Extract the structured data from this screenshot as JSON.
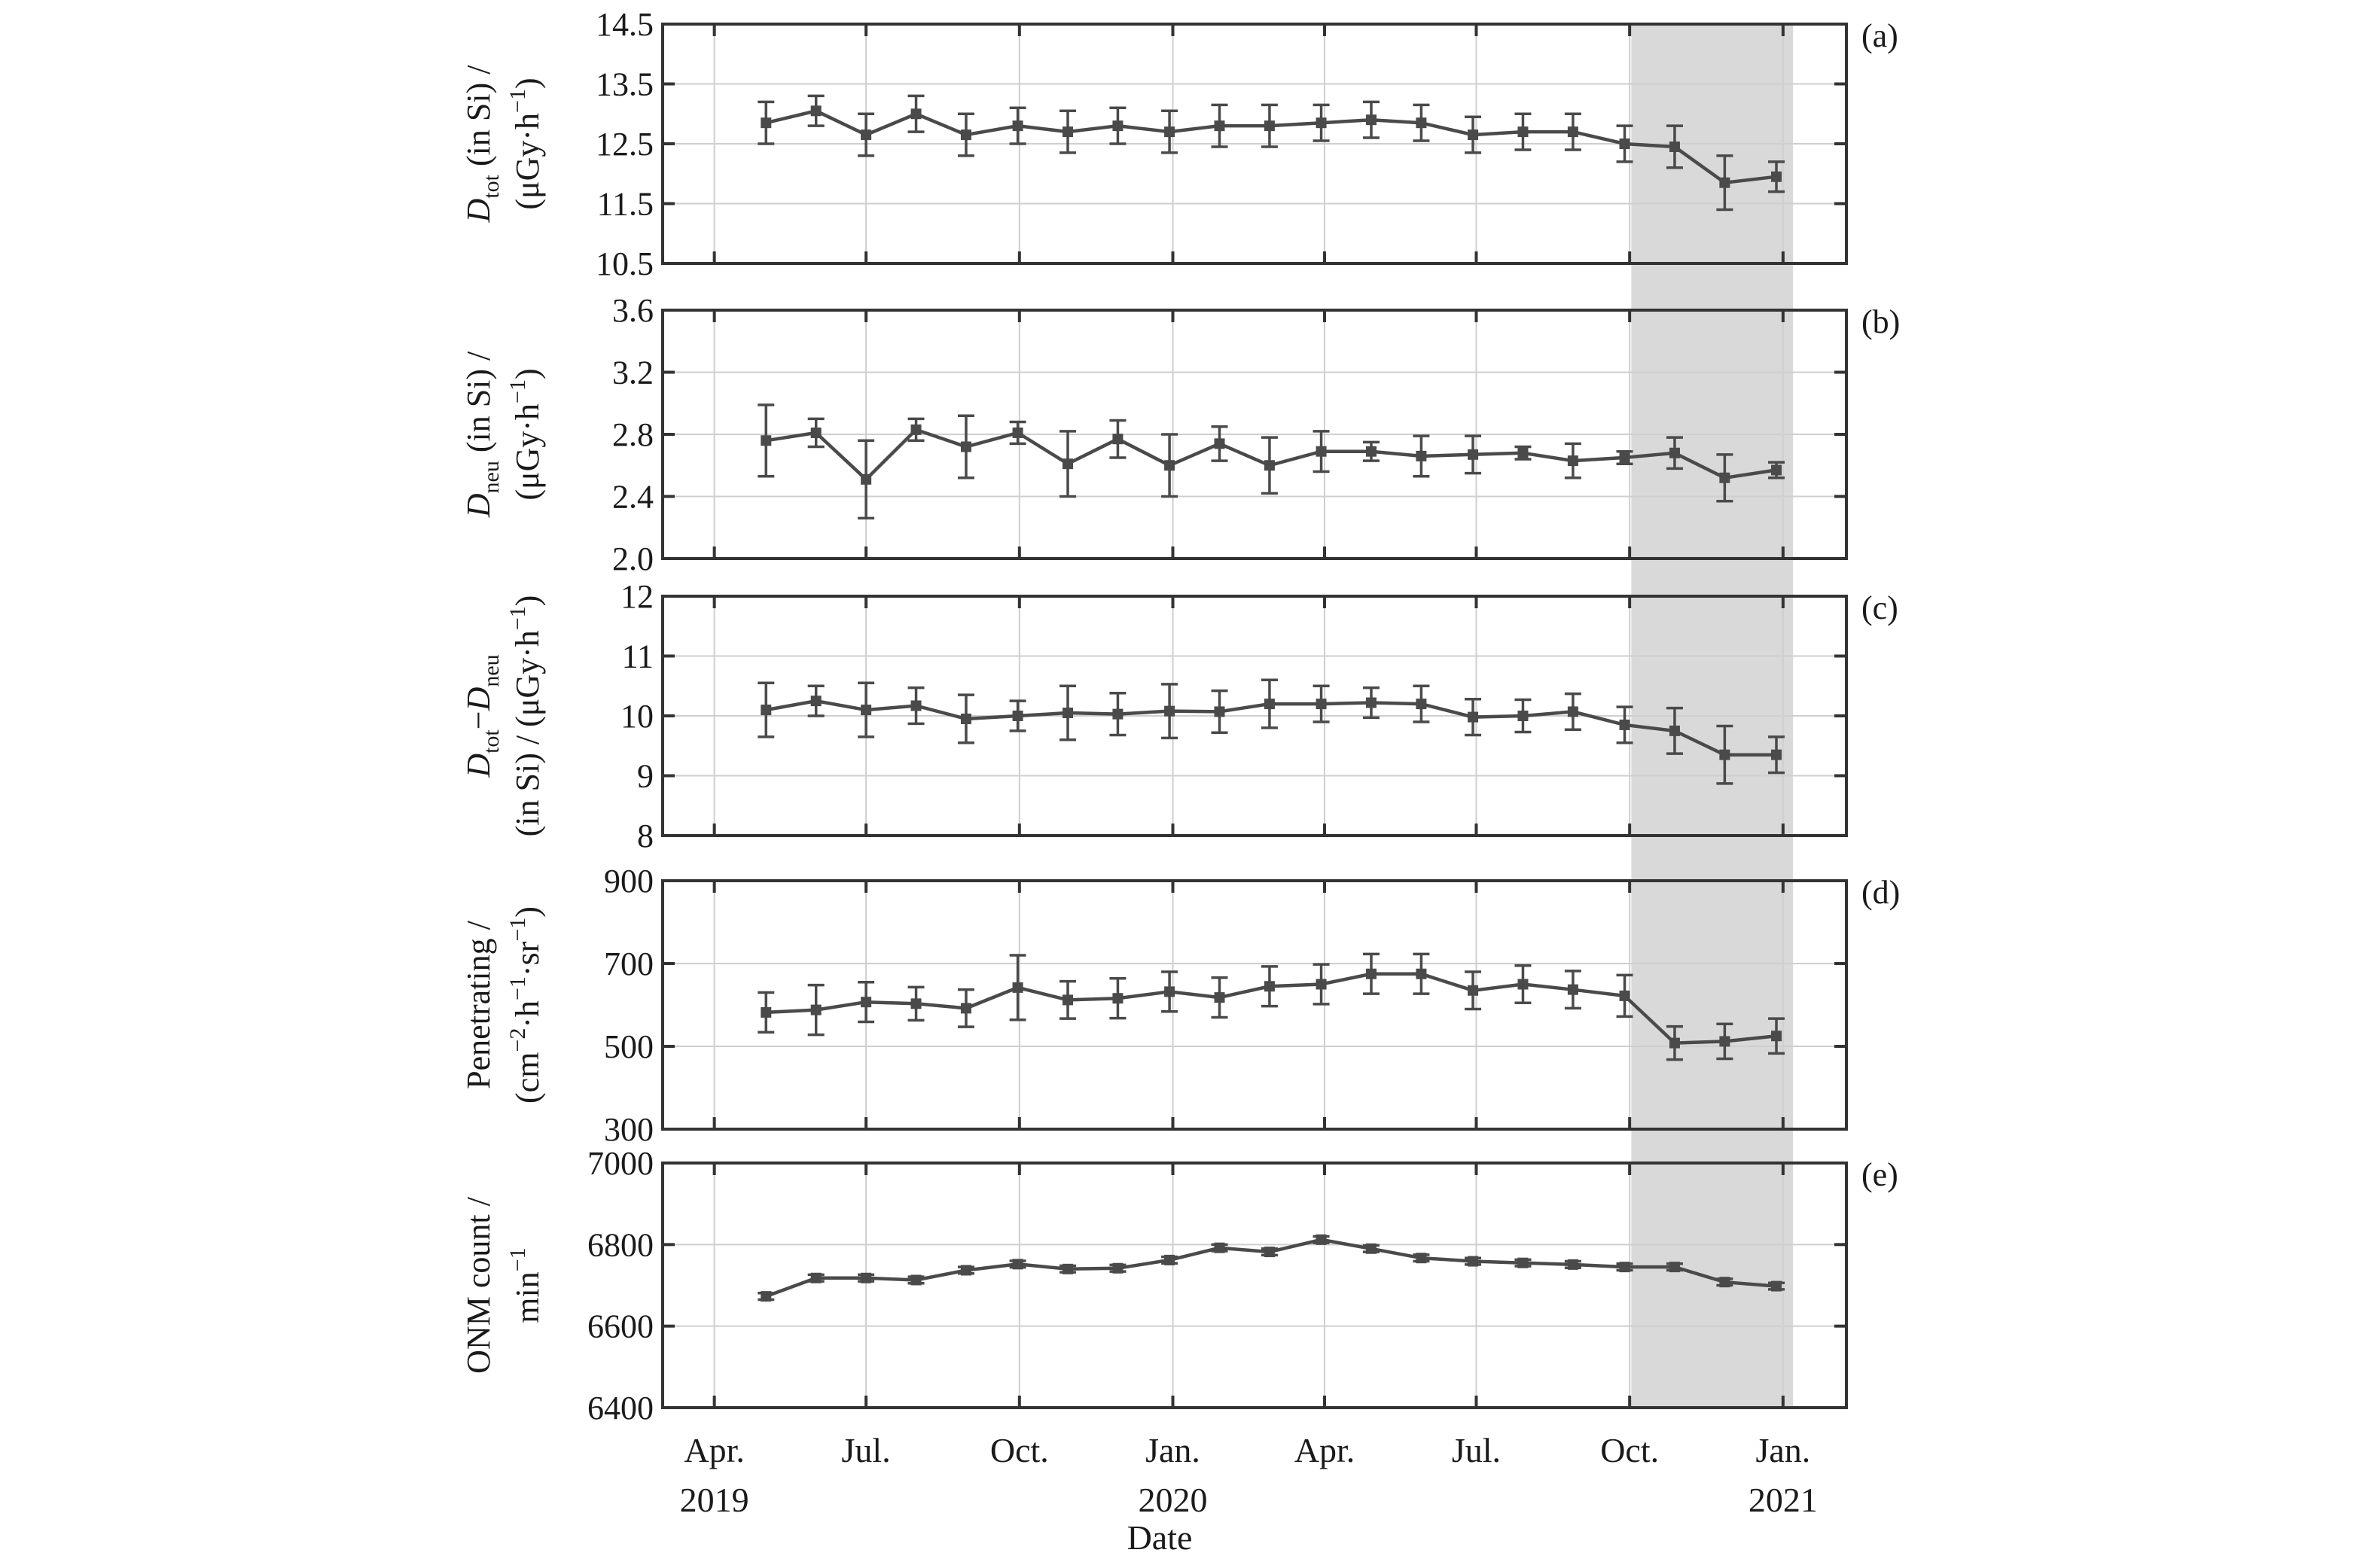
{
  "chart_data": {
    "type": "line",
    "xlabel": "Date",
    "x_ticks": [
      {
        "date": "2019-04-01",
        "line1": "Apr.",
        "line2": "2019"
      },
      {
        "date": "2019-07-01",
        "line1": "Jul.",
        "line2": ""
      },
      {
        "date": "2019-10-01",
        "line1": "Oct.",
        "line2": ""
      },
      {
        "date": "2020-01-01",
        "line1": "Jan.",
        "line2": "2020"
      },
      {
        "date": "2020-04-01",
        "line1": "Apr.",
        "line2": ""
      },
      {
        "date": "2020-07-01",
        "line1": "Jul.",
        "line2": ""
      },
      {
        "date": "2020-10-01",
        "line1": "Oct.",
        "line2": ""
      },
      {
        "date": "2021-01-01",
        "line1": "Jan.",
        "line2": "2021"
      }
    ],
    "xlim": [
      "2019-03-01",
      "2021-02-08"
    ],
    "x": [
      "2019-05-02",
      "2019-06-01",
      "2019-07-01",
      "2019-07-31",
      "2019-08-30",
      "2019-09-30",
      "2019-10-30",
      "2019-11-29",
      "2019-12-30",
      "2020-01-29",
      "2020-02-28",
      "2020-03-30",
      "2020-04-29",
      "2020-05-29",
      "2020-06-29",
      "2020-07-29",
      "2020-08-28",
      "2020-09-28",
      "2020-10-28",
      "2020-11-27",
      "2020-12-28"
    ],
    "highlight_range": [
      "2020-10-02",
      "2021-01-07"
    ],
    "panels": [
      {
        "label": "(a)",
        "ylabel_lines": [
          {
            "parts": [
              {
                "t": "D",
                "s": "italic"
              },
              {
                "t": "tot",
                "s": "sub"
              },
              {
                "t": " (in Si) /"
              }
            ]
          },
          {
            "parts": [
              {
                "t": "(μGy·h"
              },
              {
                "t": "−1",
                "s": "sup"
              },
              {
                "t": ")"
              }
            ]
          }
        ],
        "ylim": [
          10.5,
          14.5
        ],
        "yticks": [
          "10.5",
          "11.5",
          "12.5",
          "13.5",
          "14.5"
        ],
        "values": [
          12.85,
          13.05,
          12.65,
          13.0,
          12.65,
          12.8,
          12.7,
          12.8,
          12.7,
          12.8,
          12.8,
          12.85,
          12.9,
          12.85,
          12.65,
          12.7,
          12.7,
          12.5,
          12.45,
          11.85,
          11.95
        ],
        "errors": [
          0.35,
          0.25,
          0.35,
          0.3,
          0.35,
          0.3,
          0.35,
          0.3,
          0.35,
          0.35,
          0.35,
          0.3,
          0.3,
          0.3,
          0.3,
          0.3,
          0.3,
          0.3,
          0.35,
          0.45,
          0.25
        ]
      },
      {
        "label": "(b)",
        "ylabel_lines": [
          {
            "parts": [
              {
                "t": "D",
                "s": "italic"
              },
              {
                "t": "neu",
                "s": "sub"
              },
              {
                "t": " (in Si) /"
              }
            ]
          },
          {
            "parts": [
              {
                "t": "(μGy·h"
              },
              {
                "t": "−1",
                "s": "sup"
              },
              {
                "t": ")"
              }
            ]
          }
        ],
        "ylim": [
          2.0,
          3.6
        ],
        "yticks": [
          "2.0",
          "2.4",
          "2.8",
          "3.2",
          "3.6"
        ],
        "values": [
          2.76,
          2.81,
          2.51,
          2.83,
          2.72,
          2.81,
          2.61,
          2.77,
          2.6,
          2.74,
          2.6,
          2.69,
          2.69,
          2.66,
          2.67,
          2.68,
          2.63,
          2.65,
          2.68,
          2.52,
          2.57
        ],
        "errors": [
          0.23,
          0.09,
          0.25,
          0.07,
          0.2,
          0.07,
          0.21,
          0.12,
          0.2,
          0.11,
          0.18,
          0.13,
          0.06,
          0.13,
          0.12,
          0.04,
          0.11,
          0.04,
          0.1,
          0.15,
          0.05
        ]
      },
      {
        "label": "(c)",
        "ylabel_lines": [
          {
            "parts": [
              {
                "t": "D",
                "s": "italic"
              },
              {
                "t": "tot",
                "s": "sub"
              },
              {
                "t": "−"
              },
              {
                "t": "D",
                "s": "italic"
              },
              {
                "t": "neu",
                "s": "sub"
              }
            ]
          },
          {
            "parts": [
              {
                "t": "(in Si) / (μGy·h"
              },
              {
                "t": "−1",
                "s": "sup"
              },
              {
                "t": ")"
              }
            ]
          }
        ],
        "ylim": [
          8,
          12
        ],
        "yticks": [
          "8",
          "9",
          "10",
          "11",
          "12"
        ],
        "values": [
          10.1,
          10.25,
          10.1,
          10.17,
          9.95,
          10.0,
          10.05,
          10.03,
          10.08,
          10.07,
          10.2,
          10.2,
          10.22,
          10.2,
          9.98,
          10.0,
          10.07,
          9.85,
          9.75,
          9.35,
          9.35
        ],
        "errors": [
          0.45,
          0.25,
          0.45,
          0.3,
          0.4,
          0.25,
          0.45,
          0.35,
          0.45,
          0.35,
          0.4,
          0.3,
          0.25,
          0.3,
          0.3,
          0.27,
          0.3,
          0.3,
          0.38,
          0.48,
          0.3
        ]
      },
      {
        "label": "(d)",
        "ylabel_lines": [
          {
            "parts": [
              {
                "t": "Penetrating /"
              }
            ]
          },
          {
            "parts": [
              {
                "t": "(cm"
              },
              {
                "t": "−2",
                "s": "sup"
              },
              {
                "t": "·h"
              },
              {
                "t": "−1",
                "s": "sup"
              },
              {
                "t": "·sr"
              },
              {
                "t": "−1",
                "s": "sup"
              },
              {
                "t": ")"
              }
            ]
          }
        ],
        "ylim": [
          300,
          900
        ],
        "yticks": [
          "300",
          "500",
          "700",
          "900"
        ],
        "values": [
          582,
          588,
          607,
          603,
          592,
          642,
          612,
          616,
          632,
          618,
          645,
          650,
          675,
          675,
          635,
          650,
          637,
          622,
          508,
          512,
          525
        ],
        "errors": [
          48,
          60,
          48,
          40,
          45,
          78,
          45,
          48,
          48,
          48,
          48,
          48,
          48,
          48,
          45,
          45,
          45,
          50,
          40,
          42,
          42
        ]
      },
      {
        "label": "(e)",
        "ylabel_lines": [
          {
            "parts": [
              {
                "t": "ONM count /"
              }
            ]
          },
          {
            "parts": [
              {
                "t": "min"
              },
              {
                "t": "−1",
                "s": "sup"
              }
            ]
          }
        ],
        "ylim": [
          6400,
          7000
        ],
        "yticks": [
          "6400",
          "6600",
          "6800",
          "7000"
        ],
        "values": [
          6673,
          6718,
          6718,
          6713,
          6737,
          6752,
          6740,
          6742,
          6762,
          6792,
          6782,
          6812,
          6790,
          6767,
          6759,
          6755,
          6751,
          6745,
          6745,
          6708,
          6698
        ],
        "errors": [
          8,
          8,
          8,
          8,
          8,
          8,
          8,
          8,
          8,
          8,
          8,
          8,
          8,
          8,
          8,
          8,
          8,
          8,
          8,
          8,
          8
        ]
      }
    ]
  }
}
